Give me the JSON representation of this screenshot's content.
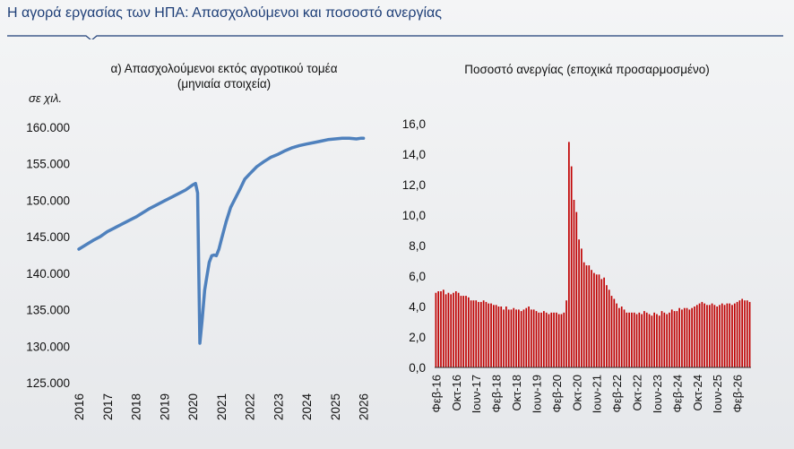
{
  "header": {
    "title": "Η αγορά εργασίας των ΗΠΑ:  Απασχολούμενοι και ποσοστό ανεργίας"
  },
  "colors": {
    "accent": "#1f3f78",
    "line": "#4f81bd",
    "bar": "#c00000"
  },
  "chart_data": [
    {
      "type": "line",
      "title": "α) Απασχολούμενοι εκτός αγροτικού τομέα (μηνιαία στοιχεία)",
      "title_lines": [
        "α) Απασχολούμενοι εκτός αγροτικού τομέα",
        "(μηνιαία στοιχεία)"
      ],
      "unit": "σε χιλ.",
      "ylim": [
        125000,
        160000
      ],
      "yticks": [
        125000,
        130000,
        135000,
        140000,
        145000,
        150000,
        155000,
        160000
      ],
      "ytick_labels": [
        "125.000",
        "130.000",
        "135.000",
        "140.000",
        "145.000",
        "150.000",
        "155.000",
        "160.000"
      ],
      "xticks": [
        "2016",
        "2017",
        "2018",
        "2019",
        "2020",
        "2021",
        "2022",
        "2023",
        "2024",
        "2025",
        "2026"
      ],
      "xlim": [
        2016,
        2026.2
      ],
      "grid": false,
      "series": [
        {
          "x": [
            2016.0,
            2016.25,
            2016.5,
            2016.75,
            2017.0,
            2017.25,
            2017.5,
            2017.75,
            2018.0,
            2018.25,
            2018.5,
            2018.75,
            2019.0,
            2019.25,
            2019.5,
            2019.75,
            2020.0,
            2020.1,
            2020.17,
            2020.25,
            2020.33,
            2020.42,
            2020.5,
            2020.58,
            2020.67,
            2020.75,
            2020.83,
            2020.92,
            2021.0,
            2021.17,
            2021.33,
            2021.5,
            2021.67,
            2021.83,
            2022.0,
            2022.25,
            2022.5,
            2022.75,
            2023.0,
            2023.25,
            2023.5,
            2023.75,
            2024.0,
            2024.25,
            2024.5,
            2024.75,
            2025.0,
            2025.25,
            2025.5,
            2025.75,
            2025.92,
            2026.0
          ],
          "y": [
            143300,
            143900,
            144500,
            145000,
            145700,
            146200,
            146700,
            147200,
            147700,
            148300,
            148900,
            149400,
            149900,
            150400,
            150900,
            151400,
            152100,
            152300,
            151000,
            130400,
            133500,
            137700,
            139600,
            141500,
            142400,
            142500,
            142400,
            143300,
            144500,
            147000,
            149000,
            150300,
            151600,
            152900,
            153600,
            154600,
            155300,
            155900,
            156300,
            156800,
            157200,
            157500,
            157700,
            157900,
            158100,
            158300,
            158400,
            158500,
            158500,
            158400,
            158500,
            158500
          ]
        }
      ]
    },
    {
      "type": "bar",
      "title": "Ποσοστό ανεργίας (εποχικά προσαρμοσμένο)",
      "ylim": [
        0,
        16
      ],
      "yticks": [
        0,
        2,
        4,
        6,
        8,
        10,
        12,
        14,
        16
      ],
      "ytick_labels": [
        "0,0",
        "2,0",
        "4,0",
        "6,0",
        "8,0",
        "10,0",
        "12,0",
        "14,0",
        "16,0"
      ],
      "xtick_labels": [
        "Φεβ-16",
        "Οκτ-16",
        "Ιουν-17",
        "Φεβ-18",
        "Οκτ-18",
        "Ιουν-19",
        "Φεβ-20",
        "Οκτ-20",
        "Ιουν-21",
        "Φεβ-22",
        "Οκτ-22",
        "Ιουν-23",
        "Φεβ-24",
        "Οκτ-24",
        "Ιουν-25",
        "Φεβ-26"
      ],
      "grid": false,
      "values": [
        4.9,
        5.0,
        5.0,
        5.1,
        4.8,
        4.9,
        4.8,
        4.9,
        5.0,
        4.9,
        4.7,
        4.7,
        4.7,
        4.6,
        4.4,
        4.4,
        4.4,
        4.3,
        4.3,
        4.4,
        4.3,
        4.2,
        4.2,
        4.1,
        4.1,
        4.0,
        4.0,
        3.8,
        4.0,
        3.8,
        3.8,
        3.9,
        3.8,
        3.8,
        3.7,
        3.8,
        3.9,
        4.0,
        3.8,
        3.8,
        3.7,
        3.6,
        3.6,
        3.7,
        3.6,
        3.5,
        3.6,
        3.6,
        3.6,
        3.5,
        3.5,
        3.6,
        4.4,
        14.8,
        13.2,
        11.0,
        10.2,
        8.4,
        7.8,
        6.9,
        6.7,
        6.7,
        6.4,
        6.2,
        6.1,
        6.1,
        5.8,
        5.9,
        5.4,
        5.1,
        4.7,
        4.5,
        4.2,
        3.9,
        4.0,
        3.8,
        3.6,
        3.6,
        3.6,
        3.6,
        3.5,
        3.6,
        3.5,
        3.7,
        3.6,
        3.5,
        3.4,
        3.6,
        3.5,
        3.4,
        3.7,
        3.6,
        3.5,
        3.6,
        3.8,
        3.7,
        3.7,
        3.9,
        3.8,
        3.9,
        3.9,
        3.8,
        3.9,
        4.0,
        4.1,
        4.2,
        4.3,
        4.2,
        4.1,
        4.1,
        4.2,
        4.1,
        4.0,
        4.1,
        4.2,
        4.1,
        4.2,
        4.2,
        4.1,
        4.2,
        4.3,
        4.4,
        4.5,
        4.4,
        4.4,
        4.3
      ]
    }
  ]
}
